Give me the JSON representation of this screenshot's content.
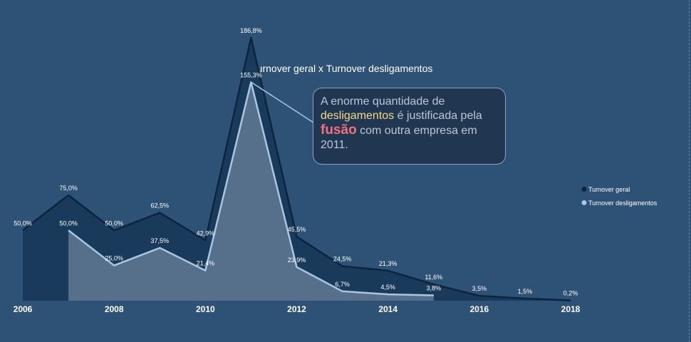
{
  "chart_data": {
    "type": "area",
    "title": "Turnover geral x Turnover desligamentos",
    "x": [
      2006,
      2007,
      2008,
      2009,
      2010,
      2011,
      2012,
      2013,
      2014,
      2015,
      2016,
      2017,
      2018
    ],
    "x_ticks": [
      "2006",
      "2008",
      "2010",
      "2012",
      "2014",
      "2016",
      "2018"
    ],
    "ylim": [
      0,
      200
    ],
    "legend_position": "right",
    "grid": false,
    "series": [
      {
        "name": "Turnover geral",
        "color": "#1a3a5c",
        "line_color": "#0d2440",
        "x": [
          2006,
          2007,
          2008,
          2009,
          2010,
          2011,
          2012,
          2013,
          2014,
          2015,
          2016,
          2017,
          2018
        ],
        "values": [
          50.0,
          75.0,
          50.0,
          62.5,
          42.9,
          186.8,
          45.5,
          24.5,
          21.3,
          11.6,
          3.5,
          1.5,
          0.2
        ],
        "labels": [
          "50,0%",
          "75,0%",
          "50,0%",
          "62,5%",
          "42,9%",
          "186,8%",
          "45,5%",
          "24,5%",
          "21,3%",
          "11,6%",
          "3,5%",
          "1,5%",
          "0,2%"
        ]
      },
      {
        "name": "Turnover desligamentos",
        "color": "#566f8b",
        "line_color": "#a9c6e4",
        "x": [
          2007,
          2008,
          2009,
          2010,
          2011,
          2012,
          2013,
          2014,
          2015
        ],
        "values": [
          50.0,
          25.0,
          37.5,
          21.4,
          155.3,
          23.9,
          6.7,
          4.5,
          3.8
        ],
        "labels": [
          "50,0%",
          "25,0%",
          "37,5%",
          "21,4%",
          "155,3%",
          "23,9%",
          "6,7%",
          "4,5%",
          "3,8%"
        ]
      }
    ],
    "annotation": {
      "part1": "A enorme quantidade de ",
      "highlight1": "desligamentos",
      "part2": " é justificada pela ",
      "highlight2": "fusão",
      "part3": " com outra empresa em 2011.",
      "points_to_x": 2011,
      "points_to_series": 1
    }
  }
}
